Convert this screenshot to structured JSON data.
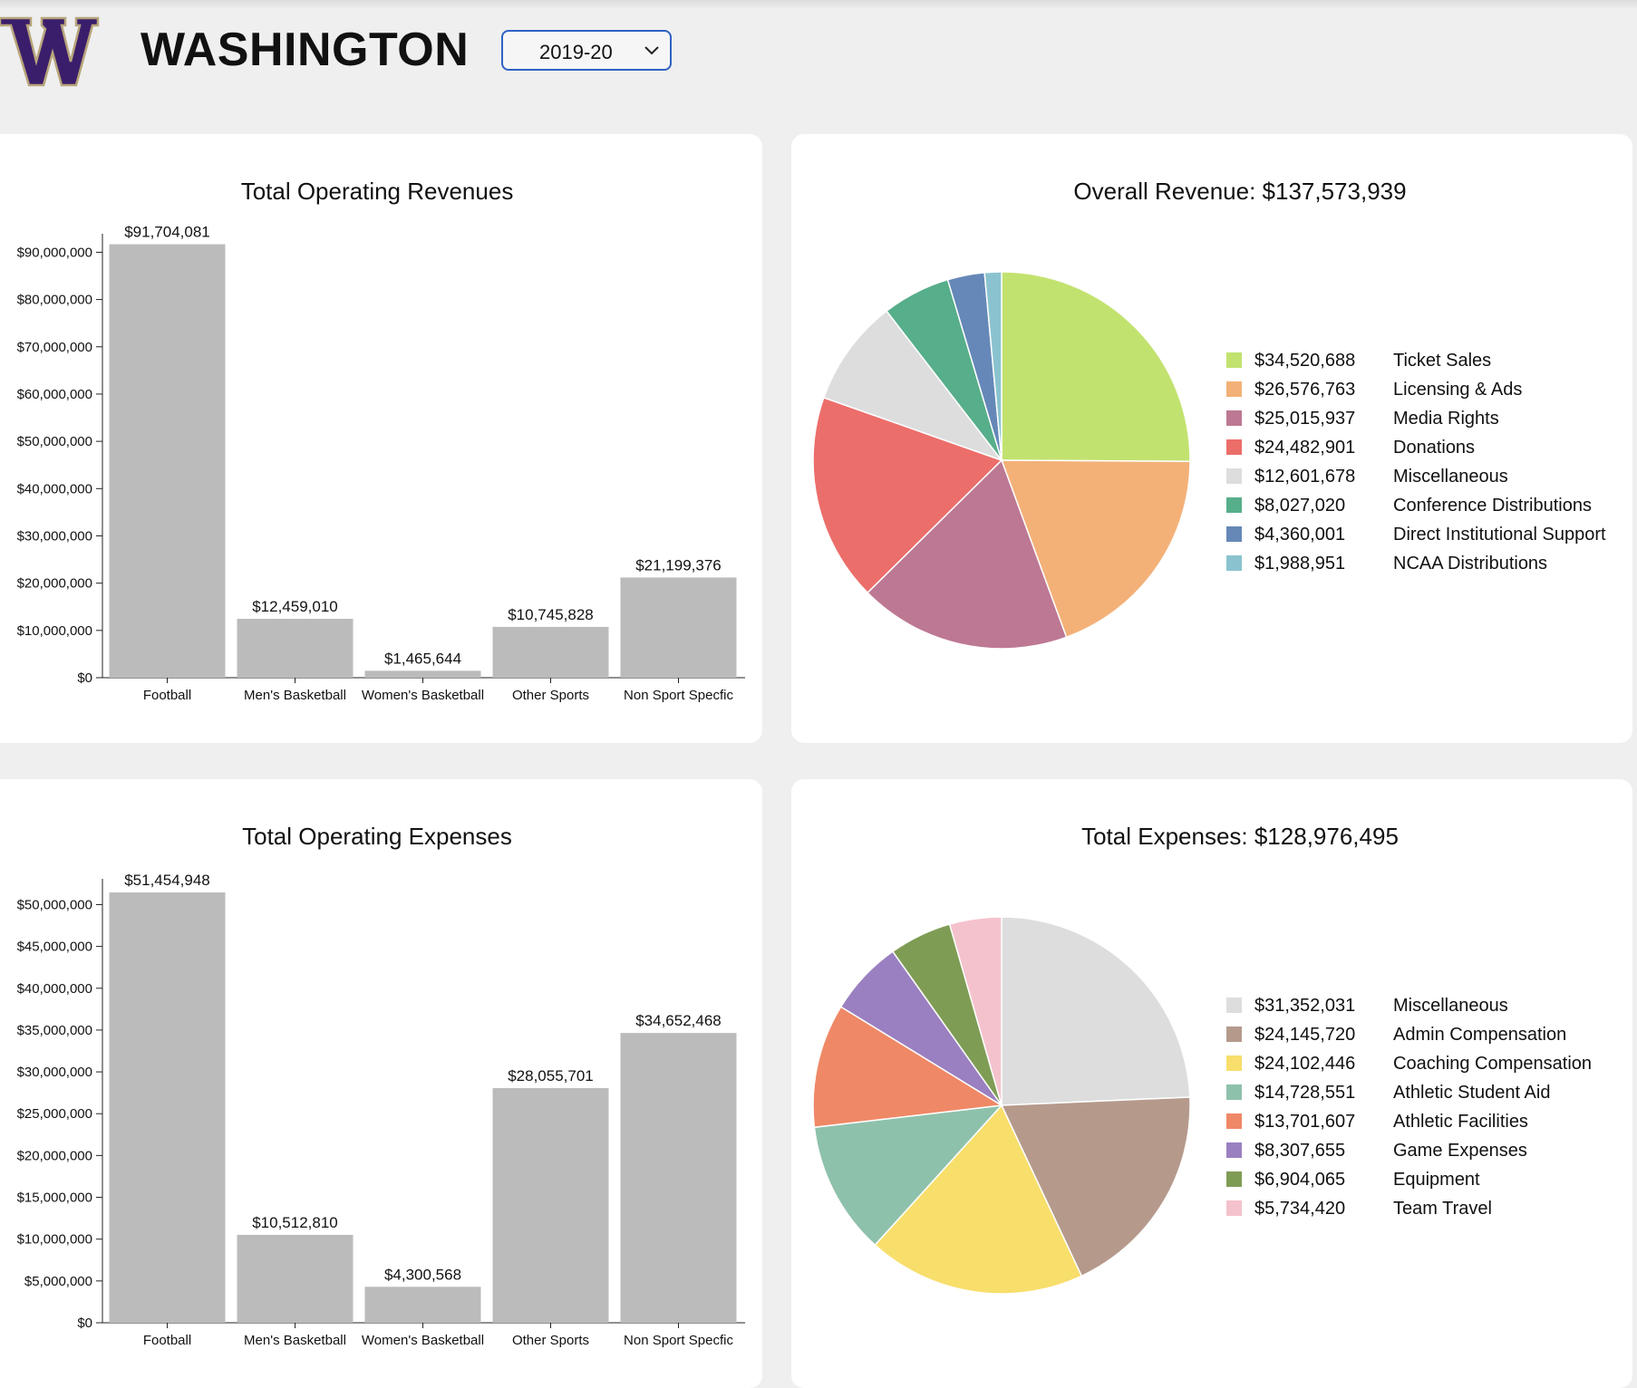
{
  "header": {
    "team_name": "WASHINGTON",
    "season": "2019-20",
    "logo_letter": "W",
    "brand_color": "#3b1e6b",
    "accent_color": "#b7a57a"
  },
  "chart_data": [
    {
      "type": "bar",
      "title": "Total Operating Revenues",
      "categories": [
        "Football",
        "Men's Basketball",
        "Women's Basketball",
        "Other Sports",
        "Non Sport Specfic"
      ],
      "values": [
        91704081,
        12459010,
        1465644,
        10745828,
        21199376
      ],
      "value_labels": [
        "$91,704,081",
        "$12,459,010",
        "$1,465,644",
        "$10,745,828",
        "$21,199,376"
      ],
      "ylim": [
        0,
        92000000
      ],
      "yticks": [
        0,
        10000000,
        20000000,
        30000000,
        40000000,
        50000000,
        60000000,
        70000000,
        80000000,
        90000000
      ],
      "ytick_labels": [
        "$0",
        "$10,000,000",
        "$20,000,000",
        "$30,000,000",
        "$40,000,000",
        "$50,000,000",
        "$60,000,000",
        "$70,000,000",
        "$80,000,000",
        "$90,000,000"
      ],
      "bar_color": "#bbbbbb",
      "xlabel": "",
      "ylabel": ""
    },
    {
      "type": "pie",
      "title": "Overall Revenue: $137,573,939",
      "labels": [
        "Ticket Sales",
        "Licensing & Ads",
        "Media Rights",
        "Donations",
        "Miscellaneous",
        "Conference Distributions",
        "Direct Institutional Support",
        "NCAA Distributions"
      ],
      "values": [
        34520688,
        26576763,
        25015937,
        24482901,
        12601678,
        8027020,
        4360001,
        1988951
      ],
      "value_labels": [
        "$34,520,688",
        "$26,576,763",
        "$25,015,937",
        "$24,482,901",
        "$12,601,678",
        "$8,027,020",
        "$4,360,001",
        "$1,988,951"
      ],
      "colors": [
        "#c2e26f",
        "#f3b178",
        "#bd7893",
        "#ec6e6b",
        "#dddddd",
        "#57ae8a",
        "#6588b8",
        "#8ac3cf"
      ],
      "legend": "right"
    },
    {
      "type": "bar",
      "title": "Total Operating Expenses",
      "categories": [
        "Football",
        "Men's Basketball",
        "Women's Basketball",
        "Other Sports",
        "Non Sport Specfic"
      ],
      "values": [
        51454948,
        10512810,
        4300568,
        28055701,
        34652468
      ],
      "value_labels": [
        "$51,454,948",
        "$10,512,810",
        "$4,300,568",
        "$28,055,701",
        "$34,652,468"
      ],
      "ylim": [
        0,
        52000000
      ],
      "yticks": [
        0,
        5000000,
        10000000,
        15000000,
        20000000,
        25000000,
        30000000,
        35000000,
        40000000,
        45000000,
        50000000
      ],
      "ytick_labels": [
        "$0",
        "$5,000,000",
        "$10,000,000",
        "$15,000,000",
        "$20,000,000",
        "$25,000,000",
        "$30,000,000",
        "$35,000,000",
        "$40,000,000",
        "$45,000,000",
        "$50,000,000"
      ],
      "bar_color": "#bbbbbb",
      "xlabel": "",
      "ylabel": ""
    },
    {
      "type": "pie",
      "title": "Total Expenses: $128,976,495",
      "labels": [
        "Miscellaneous",
        "Admin Compensation",
        "Coaching Compensation",
        "Athletic Student Aid",
        "Athletic Facilities",
        "Game Expenses",
        "Equipment",
        "Team Travel"
      ],
      "values": [
        31352031,
        24145720,
        24102446,
        14728551,
        13701607,
        8307655,
        6904065,
        5734420
      ],
      "value_labels": [
        "$31,352,031",
        "$24,145,720",
        "$24,102,446",
        "$14,728,551",
        "$13,701,607",
        "$8,307,655",
        "$6,904,065",
        "$5,734,420"
      ],
      "colors": [
        "#dddddd",
        "#b59a8c",
        "#f8de6b",
        "#8ec1ab",
        "#ef8866",
        "#9a80c0",
        "#7f9c55",
        "#f4c2cc"
      ],
      "legend": "right"
    }
  ]
}
